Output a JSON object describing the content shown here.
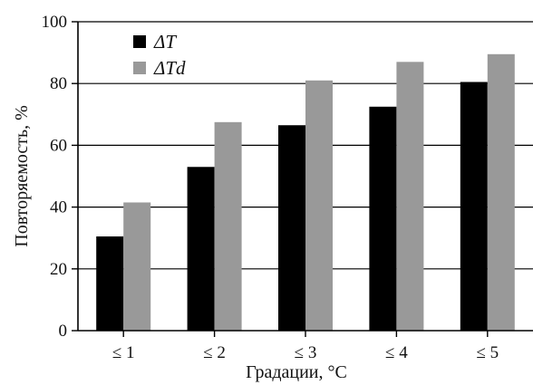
{
  "chart_data": {
    "type": "bar",
    "categories": [
      "≤ 1",
      "≤ 2",
      "≤ 3",
      "≤ 4",
      "≤ 5"
    ],
    "series": [
      {
        "name": "ΔT",
        "values": [
          30.5,
          53,
          66.5,
          72.5,
          80.5
        ],
        "color": "#000000"
      },
      {
        "name": "ΔTd",
        "values": [
          41.5,
          67.5,
          81,
          87,
          89.5
        ],
        "color": "#999999"
      }
    ],
    "title": "",
    "xlabel": "Градации, °C",
    "ylabel": "Повторяемость, %",
    "ylim": [
      0,
      100
    ],
    "yticks": [
      0,
      20,
      40,
      60,
      80,
      100
    ],
    "grid": "horizontal",
    "legend_position": "top-left"
  }
}
